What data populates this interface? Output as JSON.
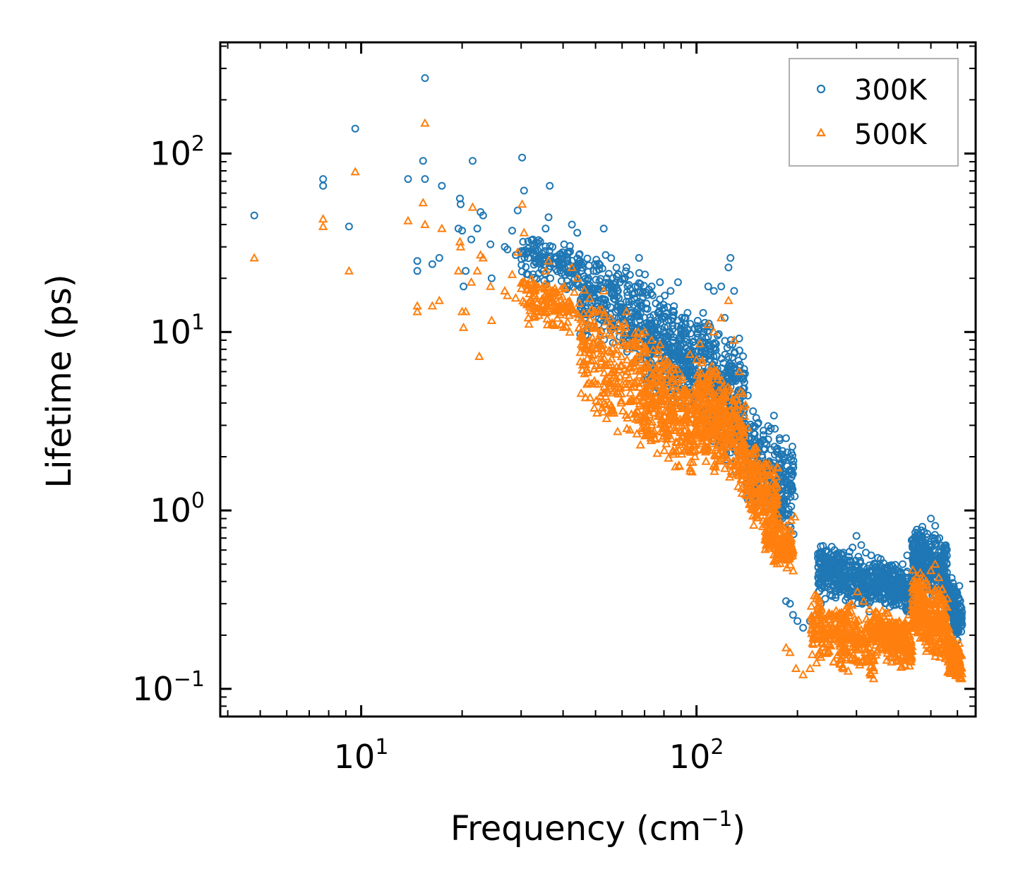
{
  "chart_data": {
    "type": "scatter",
    "title": "",
    "xlabel": "Frequency (cm",
    "xlabel_sup": "−1",
    "xlabel_suffix": ")",
    "ylabel": "Lifetime (ps)",
    "xscale": "log",
    "yscale": "log",
    "xlim": [
      3.8,
      680
    ],
    "ylim": [
      0.07,
      420
    ],
    "x_ticks": [
      {
        "value": 10,
        "base": "10",
        "exp": "1"
      },
      {
        "value": 100,
        "base": "10",
        "exp": "2"
      }
    ],
    "y_ticks": [
      {
        "value": 0.1,
        "base": "10",
        "exp": "−1"
      },
      {
        "value": 1,
        "base": "10",
        "exp": "0"
      },
      {
        "value": 10,
        "base": "10",
        "exp": "1"
      },
      {
        "value": 100,
        "base": "10",
        "exp": "2"
      }
    ],
    "legend_position": "top-right",
    "colors": {
      "300K": "#1f77b4",
      "500K": "#ff7f0e"
    },
    "series": [
      {
        "name": "300K",
        "marker": "circle",
        "points": [
          [
            4.8,
            45
          ],
          [
            7.7,
            72
          ],
          [
            7.7,
            66
          ],
          [
            9.2,
            39
          ],
          [
            9.6,
            138
          ],
          [
            13.8,
            72
          ],
          [
            14.7,
            25
          ],
          [
            14.7,
            22
          ],
          [
            15.3,
            91
          ],
          [
            15.5,
            265
          ],
          [
            15.5,
            72
          ],
          [
            16.3,
            24
          ],
          [
            17.1,
            26
          ],
          [
            17.4,
            66
          ],
          [
            19.5,
            38
          ],
          [
            19.7,
            56
          ],
          [
            19.8,
            52
          ],
          [
            20,
            37
          ],
          [
            20.2,
            18
          ],
          [
            20.5,
            22
          ],
          [
            21.3,
            33
          ],
          [
            21.5,
            91
          ],
          [
            22.2,
            38
          ],
          [
            22.7,
            47
          ],
          [
            23.1,
            45
          ],
          [
            24.3,
            31
          ],
          [
            24.5,
            20
          ],
          [
            26.8,
            30
          ],
          [
            27.3,
            29
          ],
          [
            28.2,
            37
          ],
          [
            28.9,
            27
          ],
          [
            29.3,
            48
          ],
          [
            30.2,
            95
          ],
          [
            30.6,
            62
          ],
          [
            31.5,
            21
          ],
          [
            32.5,
            33
          ],
          [
            35.5,
            38
          ],
          [
            36.2,
            44
          ],
          [
            36.5,
            66
          ],
          [
            37.2,
            30
          ],
          [
            40.3,
            31
          ],
          [
            42.5,
            40
          ],
          [
            44.1,
            36
          ],
          [
            47.6,
            20
          ],
          [
            49.8,
            24
          ],
          [
            52.9,
            38
          ],
          [
            53.6,
            27
          ],
          [
            56.2,
            20
          ],
          [
            58.5,
            21
          ],
          [
            61.8,
            23
          ],
          [
            65.8,
            18
          ],
          [
            67.4,
            26
          ],
          [
            70.2,
            21
          ],
          [
            73.5,
            18
          ],
          [
            77.8,
            19
          ],
          [
            80.4,
            16
          ],
          [
            83.7,
            17
          ],
          [
            88.1,
            19
          ],
          [
            92.8,
            11
          ],
          [
            96.1,
            9.8
          ],
          [
            100.5,
            10.8
          ],
          [
            104.3,
            8.6
          ],
          [
            108.4,
            18
          ],
          [
            112.7,
            17
          ],
          [
            118.5,
            18
          ],
          [
            121.4,
            12
          ],
          [
            124.6,
            23
          ],
          [
            126.3,
            26
          ],
          [
            129.5,
            17
          ],
          [
            134.1,
            9.2
          ],
          [
            138.7,
            6.2
          ],
          [
            142.3,
            4.4
          ],
          [
            147.5,
            3.6
          ],
          [
            152.9,
            3.1
          ],
          [
            158.4,
            2.8
          ],
          [
            163.7,
            2.5
          ],
          [
            170.2,
            3.4
          ],
          [
            175.6,
            1.3
          ],
          [
            180.4,
            1.5
          ],
          [
            185.1,
            1.6
          ],
          [
            191.3,
            1.4
          ],
          [
            196.4,
            1.2
          ],
          [
            185,
            0.31
          ],
          [
            190,
            0.3
          ],
          [
            194,
            0.26
          ],
          [
            200,
            0.24
          ],
          [
            208,
            0.22
          ],
          [
            218,
            0.24
          ],
          [
            228,
            0.26
          ],
          [
            235,
            0.3
          ],
          [
            242,
            0.32
          ],
          [
            250,
            0.36
          ],
          [
            258,
            0.42
          ],
          [
            266,
            0.45
          ],
          [
            275,
            0.48
          ],
          [
            285,
            0.55
          ],
          [
            292,
            0.62
          ],
          [
            300,
            0.72
          ],
          [
            310,
            0.64
          ],
          [
            320,
            0.58
          ],
          [
            332,
            0.56
          ],
          [
            345,
            0.48
          ],
          [
            358,
            0.42
          ],
          [
            370,
            0.38
          ],
          [
            385,
            0.36
          ],
          [
            400,
            0.42
          ],
          [
            412,
            0.5
          ],
          [
            425,
            0.56
          ],
          [
            438,
            0.68
          ],
          [
            450,
            0.6
          ],
          [
            462,
            0.55
          ],
          [
            475,
            0.64
          ],
          [
            488,
            0.74
          ],
          [
            500,
            0.9
          ],
          [
            515,
            0.82
          ],
          [
            530,
            0.7
          ],
          [
            545,
            0.62
          ],
          [
            558,
            0.5
          ],
          [
            568,
            0.38
          ],
          [
            580,
            0.3
          ],
          [
            592,
            0.25
          ],
          [
            605,
            0.21
          ]
        ],
        "clusters": [
          {
            "xmin": 30,
            "xmax": 45,
            "ymin": 18,
            "ymax": 34,
            "n": 140
          },
          {
            "xmin": 45,
            "xmax": 70,
            "ymin": 8,
            "ymax": 25,
            "n": 260
          },
          {
            "xmin": 70,
            "xmax": 100,
            "ymin": 4,
            "ymax": 15,
            "n": 320
          },
          {
            "xmin": 100,
            "xmax": 140,
            "ymin": 2,
            "ymax": 10,
            "n": 380
          },
          {
            "xmin": 140,
            "xmax": 195,
            "ymin": 0.9,
            "ymax": 3,
            "n": 260
          },
          {
            "xmin": 230,
            "xmax": 340,
            "ymin": 0.3,
            "ymax": 0.6,
            "n": 320
          },
          {
            "xmin": 340,
            "xmax": 440,
            "ymin": 0.28,
            "ymax": 0.5,
            "n": 260
          },
          {
            "xmin": 440,
            "xmax": 560,
            "ymin": 0.35,
            "ymax": 0.75,
            "n": 320
          },
          {
            "xmin": 560,
            "xmax": 620,
            "ymin": 0.2,
            "ymax": 0.4,
            "n": 140
          }
        ]
      },
      {
        "name": "500K",
        "marker": "triangle",
        "points": [
          [
            4.8,
            26
          ],
          [
            7.7,
            43
          ],
          [
            7.7,
            39
          ],
          [
            9.2,
            22
          ],
          [
            9.6,
            79
          ],
          [
            13.8,
            42
          ],
          [
            14.7,
            14
          ],
          [
            14.7,
            13
          ],
          [
            15.3,
            53
          ],
          [
            15.5,
            148
          ],
          [
            15.5,
            40
          ],
          [
            16.3,
            14
          ],
          [
            17.1,
            15
          ],
          [
            17.4,
            38
          ],
          [
            19.5,
            22
          ],
          [
            19.7,
            32
          ],
          [
            19.8,
            30
          ],
          [
            20,
            13
          ],
          [
            20.2,
            10.6
          ],
          [
            20.5,
            13
          ],
          [
            21.3,
            19
          ],
          [
            21.5,
            50
          ],
          [
            22.2,
            22
          ],
          [
            22.7,
            27
          ],
          [
            23.1,
            26
          ],
          [
            24.3,
            18
          ],
          [
            24.5,
            11.6
          ],
          [
            26.8,
            17
          ],
          [
            27.3,
            16
          ],
          [
            28.2,
            21
          ],
          [
            28.9,
            15.5
          ],
          [
            29.3,
            28
          ],
          [
            30.2,
            52
          ],
          [
            30.6,
            36
          ],
          [
            31.5,
            12
          ],
          [
            32.5,
            19
          ],
          [
            22.5,
            7.3
          ],
          [
            35.5,
            22
          ],
          [
            36.2,
            25
          ],
          [
            37.2,
            17
          ],
          [
            40.3,
            18
          ],
          [
            42.5,
            23
          ],
          [
            44.1,
            20
          ],
          [
            47.6,
            11
          ],
          [
            49.8,
            13
          ],
          [
            52.9,
            17
          ],
          [
            56.2,
            10.5
          ],
          [
            58.5,
            11
          ],
          [
            61.8,
            13
          ],
          [
            65.8,
            9
          ],
          [
            70.2,
            10
          ],
          [
            73.5,
            9
          ],
          [
            77.8,
            8.5
          ],
          [
            80.4,
            7
          ],
          [
            85.4,
            6.3
          ],
          [
            90.1,
            5.4
          ],
          [
            95.6,
            7.5
          ],
          [
            102.4,
            8.6
          ],
          [
            108.4,
            11
          ],
          [
            112.7,
            10
          ],
          [
            118.5,
            12
          ],
          [
            124.6,
            15
          ],
          [
            129.5,
            9
          ],
          [
            134.1,
            6
          ],
          [
            138.7,
            3.8
          ],
          [
            142.3,
            2.9
          ],
          [
            147.5,
            2.1
          ],
          [
            152.9,
            1.6
          ],
          [
            158.4,
            1.3
          ],
          [
            163.7,
            1.1
          ],
          [
            170.2,
            0.95
          ],
          [
            175.6,
            0.8
          ],
          [
            180.4,
            0.7
          ],
          [
            185.1,
            0.82
          ],
          [
            191.3,
            0.88
          ],
          [
            196.4,
            0.92
          ],
          [
            185,
            0.17
          ],
          [
            190,
            0.16
          ],
          [
            198,
            0.13
          ],
          [
            208,
            0.12
          ],
          [
            218,
            0.13
          ],
          [
            228,
            0.14
          ],
          [
            240,
            0.16
          ],
          [
            252,
            0.19
          ],
          [
            265,
            0.22
          ],
          [
            278,
            0.26
          ],
          [
            290,
            0.3
          ],
          [
            302,
            0.35
          ],
          [
            315,
            0.31
          ],
          [
            328,
            0.28
          ],
          [
            342,
            0.24
          ],
          [
            356,
            0.21
          ],
          [
            370,
            0.19
          ],
          [
            385,
            0.18
          ],
          [
            400,
            0.2
          ],
          [
            415,
            0.23
          ],
          [
            430,
            0.26
          ],
          [
            445,
            0.3
          ],
          [
            458,
            0.33
          ],
          [
            470,
            0.31
          ],
          [
            485,
            0.4
          ],
          [
            500,
            0.46
          ],
          [
            515,
            0.5
          ],
          [
            528,
            0.42
          ],
          [
            540,
            0.36
          ],
          [
            552,
            0.3
          ],
          [
            565,
            0.22
          ],
          [
            578,
            0.16
          ],
          [
            590,
            0.13
          ],
          [
            605,
            0.12
          ]
        ],
        "clusters": [
          {
            "xmin": 30,
            "xmax": 45,
            "ymin": 10,
            "ymax": 19,
            "n": 140
          },
          {
            "xmin": 45,
            "xmax": 70,
            "ymin": 3,
            "ymax": 13,
            "n": 260
          },
          {
            "xmin": 70,
            "xmax": 100,
            "ymin": 1.8,
            "ymax": 7,
            "n": 320
          },
          {
            "xmin": 100,
            "xmax": 140,
            "ymin": 1.5,
            "ymax": 6,
            "n": 380
          },
          {
            "xmin": 140,
            "xmax": 175,
            "ymin": 0.75,
            "ymax": 2.2,
            "n": 200
          },
          {
            "xmin": 160,
            "xmax": 195,
            "ymin": 0.5,
            "ymax": 0.9,
            "n": 160
          },
          {
            "xmin": 220,
            "xmax": 340,
            "ymin": 0.13,
            "ymax": 0.3,
            "n": 320
          },
          {
            "xmin": 340,
            "xmax": 440,
            "ymin": 0.14,
            "ymax": 0.26,
            "n": 260
          },
          {
            "xmin": 440,
            "xmax": 560,
            "ymin": 0.16,
            "ymax": 0.4,
            "n": 320
          },
          {
            "xmin": 560,
            "xmax": 620,
            "ymin": 0.11,
            "ymax": 0.2,
            "n": 140
          }
        ]
      }
    ]
  }
}
